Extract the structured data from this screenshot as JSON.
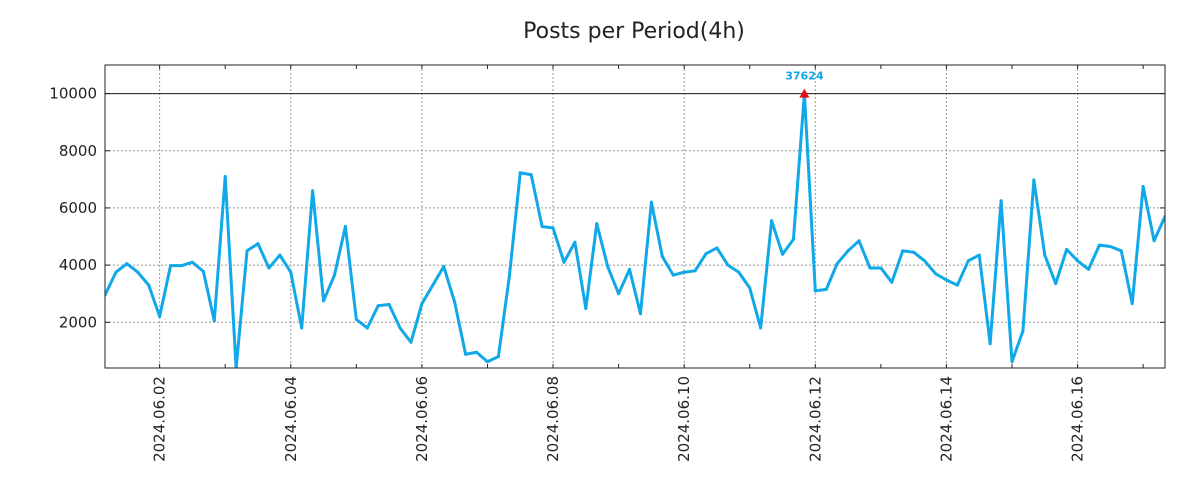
{
  "chart_data": {
    "type": "line",
    "title": "Posts per Period(4h)",
    "xlabel": "",
    "ylabel": "",
    "ylim": [
      400,
      11000
    ],
    "y_ticks": [
      2000,
      4000,
      6000,
      8000,
      10000
    ],
    "x_tick_labels": [
      "2024.06.02",
      "2024.06.04",
      "2024.06.06",
      "2024.06.08",
      "2024.06.10",
      "2024.06.12",
      "2024.06.14",
      "2024.06.16"
    ],
    "reference_line": 10000,
    "peak": {
      "index": 64,
      "value": 10000,
      "label": "37624",
      "actual": 37624
    },
    "colors": {
      "series": "#10a8e8",
      "peak_marker": "#dd1111",
      "peak_label": "#10a8e8"
    },
    "series": [
      {
        "name": "posts",
        "values": [
          2950,
          3750,
          4050,
          3750,
          3300,
          2200,
          3980,
          3980,
          4100,
          3780,
          2050,
          7100,
          400,
          4500,
          4750,
          3900,
          4350,
          3750,
          1800,
          6600,
          2750,
          3650,
          5350,
          2100,
          1800,
          2580,
          2620,
          1800,
          1300,
          2650,
          3300,
          3950,
          2700,
          880,
          950,
          620,
          800,
          3600,
          7230,
          7160,
          5350,
          5300,
          4100,
          4800,
          2480,
          5450,
          3950,
          3000,
          3850,
          2300,
          6200,
          4300,
          3650,
          3750,
          3800,
          4400,
          4600,
          4000,
          3750,
          3200,
          1800,
          5550,
          4380,
          4900,
          10000,
          3100,
          3150,
          4050,
          4500,
          4850,
          3900,
          3900,
          3400,
          4500,
          4450,
          4150,
          3700,
          3480,
          3300,
          4150,
          4350,
          1250,
          6250,
          620,
          1700,
          6980,
          4350,
          3350,
          4550,
          4150,
          3850,
          4700,
          4650,
          4500,
          2650,
          6750,
          4850,
          5700
        ]
      }
    ]
  }
}
